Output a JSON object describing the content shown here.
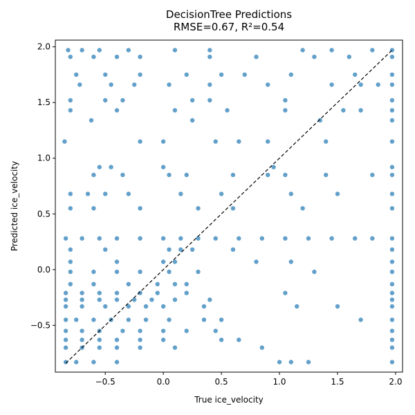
{
  "chart_data": {
    "type": "scatter",
    "title": "DecisionTree Predictions",
    "subtitle": "RMSE=0.67, R²=0.54",
    "xlabel": "True ice_velocity",
    "ylabel": "Predicted ice_velocity",
    "xlim": [
      -0.93,
      2.06
    ],
    "ylim": [
      -0.92,
      2.06
    ],
    "xticks": [
      -0.5,
      0.0,
      0.5,
      1.0,
      1.5,
      2.0
    ],
    "xtick_labels": [
      "−0.5",
      "0.0",
      "0.5",
      "1.0",
      "1.5",
      "2.0"
    ],
    "yticks": [
      -0.5,
      0.0,
      0.5,
      1.0,
      1.5,
      2.0
    ],
    "ytick_labels": [
      "−0.5",
      "0.0",
      "0.5",
      "1.0",
      "1.5",
      "2.0"
    ],
    "grid": false,
    "point_color": "#1f77b4",
    "reference_line": {
      "from": [
        -0.84,
        -0.84
      ],
      "to": [
        1.98,
        1.98
      ],
      "style": "dashed",
      "color": "#000000"
    },
    "prediction_levels": [
      1.97,
      1.91,
      1.75,
      1.66,
      1.52,
      1.43,
      1.34,
      1.15,
      0.92,
      0.85,
      0.68,
      0.55,
      0.28,
      0.18,
      0.07,
      -0.02,
      -0.13,
      -0.21,
      -0.27,
      -0.33,
      -0.45,
      -0.55,
      -0.63,
      -0.7,
      -0.83
    ],
    "points": [
      [
        -0.82,
        1.97
      ],
      [
        -0.7,
        1.97
      ],
      [
        -0.55,
        1.97
      ],
      [
        -0.3,
        1.97
      ],
      [
        0.1,
        1.97
      ],
      [
        0.4,
        1.97
      ],
      [
        1.2,
        1.97
      ],
      [
        1.45,
        1.97
      ],
      [
        1.8,
        1.97
      ],
      [
        1.97,
        1.97
      ],
      [
        -0.8,
        1.91
      ],
      [
        -0.6,
        1.91
      ],
      [
        -0.4,
        1.91
      ],
      [
        -0.2,
        1.91
      ],
      [
        0.4,
        1.91
      ],
      [
        0.8,
        1.91
      ],
      [
        1.3,
        1.91
      ],
      [
        1.6,
        1.91
      ],
      [
        1.97,
        1.91
      ],
      [
        -0.75,
        1.75
      ],
      [
        -0.5,
        1.75
      ],
      [
        -0.2,
        1.75
      ],
      [
        0.2,
        1.75
      ],
      [
        0.5,
        1.75
      ],
      [
        0.7,
        1.75
      ],
      [
        1.1,
        1.75
      ],
      [
        1.65,
        1.75
      ],
      [
        1.97,
        1.75
      ],
      [
        -0.72,
        1.66
      ],
      [
        -0.45,
        1.66
      ],
      [
        -0.25,
        1.66
      ],
      [
        0.05,
        1.66
      ],
      [
        0.4,
        1.66
      ],
      [
        0.9,
        1.66
      ],
      [
        1.45,
        1.66
      ],
      [
        1.7,
        1.66
      ],
      [
        1.85,
        1.66
      ],
      [
        1.97,
        1.66
      ],
      [
        -0.8,
        1.52
      ],
      [
        -0.5,
        1.52
      ],
      [
        -0.35,
        1.52
      ],
      [
        0.25,
        1.52
      ],
      [
        0.4,
        1.52
      ],
      [
        1.05,
        1.52
      ],
      [
        1.97,
        1.52
      ],
      [
        -0.8,
        1.43
      ],
      [
        -0.4,
        1.43
      ],
      [
        0.1,
        1.43
      ],
      [
        0.55,
        1.43
      ],
      [
        1.05,
        1.43
      ],
      [
        1.55,
        1.43
      ],
      [
        1.7,
        1.43
      ],
      [
        1.97,
        1.43
      ],
      [
        -0.62,
        1.34
      ],
      [
        0.25,
        1.34
      ],
      [
        1.35,
        1.34
      ],
      [
        1.97,
        1.34
      ],
      [
        -0.85,
        1.15
      ],
      [
        -0.2,
        1.15
      ],
      [
        0.0,
        1.15
      ],
      [
        0.45,
        1.15
      ],
      [
        0.65,
        1.15
      ],
      [
        0.9,
        1.15
      ],
      [
        1.4,
        1.15
      ],
      [
        1.97,
        1.15
      ],
      [
        -0.55,
        0.92
      ],
      [
        -0.45,
        0.92
      ],
      [
        0.0,
        0.92
      ],
      [
        0.95,
        0.92
      ],
      [
        1.97,
        0.92
      ],
      [
        -0.6,
        0.85
      ],
      [
        -0.35,
        0.85
      ],
      [
        0.05,
        0.85
      ],
      [
        0.2,
        0.85
      ],
      [
        0.6,
        0.85
      ],
      [
        0.9,
        0.85
      ],
      [
        1.05,
        0.85
      ],
      [
        1.4,
        0.85
      ],
      [
        1.8,
        0.85
      ],
      [
        1.97,
        0.85
      ],
      [
        -0.8,
        0.68
      ],
      [
        -0.65,
        0.68
      ],
      [
        -0.5,
        0.68
      ],
      [
        -0.3,
        0.68
      ],
      [
        0.15,
        0.68
      ],
      [
        0.5,
        0.68
      ],
      [
        1.1,
        0.68
      ],
      [
        1.5,
        0.68
      ],
      [
        1.97,
        0.68
      ],
      [
        -0.8,
        0.55
      ],
      [
        -0.6,
        0.55
      ],
      [
        -0.2,
        0.55
      ],
      [
        0.3,
        0.55
      ],
      [
        0.6,
        0.55
      ],
      [
        1.2,
        0.55
      ],
      [
        1.97,
        0.55
      ],
      [
        -0.84,
        0.28
      ],
      [
        -0.7,
        0.28
      ],
      [
        -0.55,
        0.28
      ],
      [
        -0.4,
        0.28
      ],
      [
        -0.2,
        0.28
      ],
      [
        0.0,
        0.28
      ],
      [
        0.15,
        0.28
      ],
      [
        0.3,
        0.28
      ],
      [
        0.45,
        0.28
      ],
      [
        0.65,
        0.28
      ],
      [
        0.85,
        0.28
      ],
      [
        1.05,
        0.28
      ],
      [
        1.25,
        0.28
      ],
      [
        1.45,
        0.28
      ],
      [
        1.65,
        0.28
      ],
      [
        1.8,
        0.28
      ],
      [
        1.97,
        0.28
      ],
      [
        -0.8,
        0.18
      ],
      [
        -0.5,
        0.18
      ],
      [
        0.05,
        0.18
      ],
      [
        0.15,
        0.18
      ],
      [
        0.25,
        0.18
      ],
      [
        0.6,
        0.18
      ],
      [
        1.97,
        0.18
      ],
      [
        -0.8,
        0.07
      ],
      [
        -0.4,
        0.07
      ],
      [
        0.0,
        0.07
      ],
      [
        0.1,
        0.07
      ],
      [
        0.8,
        0.07
      ],
      [
        1.1,
        0.07
      ],
      [
        1.97,
        0.07
      ],
      [
        -0.8,
        -0.02
      ],
      [
        -0.6,
        -0.02
      ],
      [
        -0.4,
        -0.02
      ],
      [
        -0.2,
        -0.02
      ],
      [
        0.05,
        -0.02
      ],
      [
        0.3,
        -0.02
      ],
      [
        1.3,
        -0.02
      ],
      [
        1.97,
        -0.02
      ],
      [
        -0.8,
        -0.13
      ],
      [
        -0.6,
        -0.13
      ],
      [
        -0.3,
        -0.13
      ],
      [
        -0.05,
        -0.13
      ],
      [
        0.1,
        -0.13
      ],
      [
        0.2,
        -0.13
      ],
      [
        1.97,
        -0.13
      ],
      [
        -0.84,
        -0.21
      ],
      [
        -0.7,
        -0.21
      ],
      [
        -0.55,
        -0.21
      ],
      [
        -0.4,
        -0.21
      ],
      [
        -0.2,
        -0.21
      ],
      [
        -0.05,
        -0.21
      ],
      [
        0.2,
        -0.21
      ],
      [
        1.05,
        -0.21
      ],
      [
        1.97,
        -0.21
      ],
      [
        -0.84,
        -0.27
      ],
      [
        -0.7,
        -0.27
      ],
      [
        -0.55,
        -0.27
      ],
      [
        -0.4,
        -0.27
      ],
      [
        -0.25,
        -0.27
      ],
      [
        -0.1,
        -0.27
      ],
      [
        0.1,
        -0.27
      ],
      [
        0.4,
        -0.27
      ],
      [
        1.97,
        -0.27
      ],
      [
        -0.84,
        -0.33
      ],
      [
        -0.7,
        -0.33
      ],
      [
        -0.5,
        -0.33
      ],
      [
        -0.3,
        -0.33
      ],
      [
        -0.15,
        -0.33
      ],
      [
        0.0,
        -0.33
      ],
      [
        0.35,
        -0.33
      ],
      [
        1.15,
        -0.33
      ],
      [
        1.5,
        -0.33
      ],
      [
        1.97,
        -0.33
      ],
      [
        -0.84,
        -0.45
      ],
      [
        -0.75,
        -0.45
      ],
      [
        -0.6,
        -0.45
      ],
      [
        -0.45,
        -0.45
      ],
      [
        -0.3,
        -0.45
      ],
      [
        -0.15,
        -0.45
      ],
      [
        0.05,
        -0.45
      ],
      [
        0.35,
        -0.45
      ],
      [
        0.5,
        -0.45
      ],
      [
        1.7,
        -0.45
      ],
      [
        1.97,
        -0.45
      ],
      [
        -0.84,
        -0.55
      ],
      [
        -0.7,
        -0.55
      ],
      [
        -0.55,
        -0.55
      ],
      [
        -0.35,
        -0.55
      ],
      [
        -0.2,
        -0.55
      ],
      [
        0.0,
        -0.55
      ],
      [
        0.2,
        -0.55
      ],
      [
        0.45,
        -0.55
      ],
      [
        1.97,
        -0.55
      ],
      [
        -0.84,
        -0.63
      ],
      [
        -0.7,
        -0.63
      ],
      [
        -0.55,
        -0.63
      ],
      [
        -0.4,
        -0.63
      ],
      [
        -0.2,
        -0.63
      ],
      [
        0.0,
        -0.63
      ],
      [
        0.5,
        -0.63
      ],
      [
        0.65,
        -0.63
      ],
      [
        1.97,
        -0.63
      ],
      [
        -0.84,
        -0.7
      ],
      [
        -0.7,
        -0.7
      ],
      [
        -0.55,
        -0.7
      ],
      [
        -0.4,
        -0.7
      ],
      [
        -0.2,
        -0.7
      ],
      [
        0.1,
        -0.7
      ],
      [
        0.85,
        -0.7
      ],
      [
        1.97,
        -0.7
      ],
      [
        -0.84,
        -0.83
      ],
      [
        -0.75,
        -0.83
      ],
      [
        -0.6,
        -0.83
      ],
      [
        -0.4,
        -0.83
      ],
      [
        1.0,
        -0.83
      ],
      [
        1.1,
        -0.83
      ],
      [
        1.25,
        -0.83
      ],
      [
        1.97,
        -0.83
      ]
    ]
  }
}
